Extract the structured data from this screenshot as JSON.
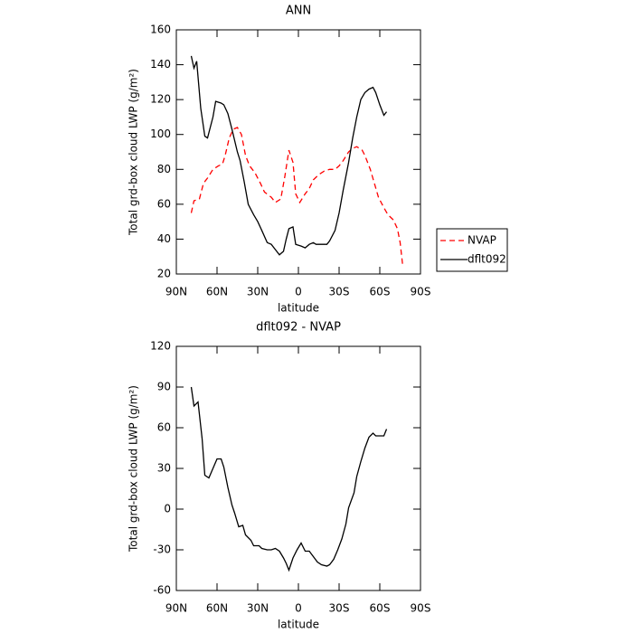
{
  "chart_data": [
    {
      "type": "line",
      "title": "ANN",
      "x_label": "latitude",
      "y_label": "Total grd-box cloud LWP (g/m²)",
      "xlim": [
        90,
        -90
      ],
      "xticks": [
        {
          "value": 90,
          "label": "90N"
        },
        {
          "value": 60,
          "label": "60N"
        },
        {
          "value": 30,
          "label": "30N"
        },
        0,
        {
          "value": -30,
          "label": "30S"
        },
        {
          "value": -60,
          "label": "60S"
        },
        {
          "value": -90,
          "label": "90S"
        }
      ],
      "ylim": [
        20,
        160
      ],
      "yticks": [
        20,
        40,
        60,
        80,
        100,
        120,
        140,
        160
      ],
      "legend": "outside-right",
      "series": [
        {
          "name": "NVAP",
          "color": "#ff0000",
          "dash": "dashed",
          "x": [
            79,
            77,
            73,
            70,
            67,
            63,
            59,
            56,
            54,
            51,
            48,
            45,
            42,
            39,
            36,
            32,
            28,
            25,
            20,
            17,
            13,
            10,
            7,
            4,
            2,
            -1,
            -5,
            -8,
            -11,
            -15,
            -19,
            -23,
            -27,
            -30,
            -33,
            -37,
            -40,
            -43,
            -47,
            -49,
            -53,
            -56,
            -59,
            -63,
            -66,
            -70,
            -73,
            -75,
            -77
          ],
          "values": [
            55,
            62,
            63,
            72,
            75,
            80,
            82,
            83,
            88,
            98,
            103,
            104,
            100,
            88,
            82,
            78,
            72,
            67,
            64,
            61,
            63,
            76,
            91,
            84,
            66,
            61,
            66,
            69,
            74,
            77,
            79,
            80,
            80,
            82,
            85,
            90,
            92,
            93,
            91,
            88,
            80,
            72,
            64,
            58,
            54,
            51,
            46,
            38,
            24
          ]
        },
        {
          "name": "dflt092",
          "color": "#000000",
          "dash": "solid",
          "x": [
            79,
            77,
            75,
            72,
            69,
            67,
            63,
            61,
            57,
            55,
            52,
            49,
            45,
            43,
            40,
            37,
            33,
            30,
            27,
            23,
            20,
            17,
            14,
            11,
            9,
            7,
            4,
            2,
            -2,
            -5,
            -8,
            -11,
            -13,
            -17,
            -21,
            -23,
            -27,
            -30,
            -33,
            -37,
            -40,
            -43,
            -46,
            -49,
            -52,
            -55,
            -57,
            -60,
            -63,
            -65
          ],
          "values": [
            145,
            138,
            142,
            115,
            99,
            98,
            110,
            119,
            118,
            117,
            112,
            103,
            90,
            85,
            73,
            60,
            54,
            50,
            45,
            38,
            37,
            34,
            31,
            33,
            40,
            46,
            47,
            37,
            36,
            35,
            37,
            38,
            37,
            37,
            37,
            39,
            45,
            55,
            68,
            84,
            98,
            110,
            120,
            124,
            126,
            127,
            124,
            117,
            111,
            113
          ]
        }
      ]
    },
    {
      "type": "line",
      "title": "dflt092 - NVAP",
      "x_label": "latitude",
      "y_label": "Total grd-box cloud LWP (g/m²)",
      "xlim": [
        90,
        -90
      ],
      "xticks": [
        {
          "value": 90,
          "label": "90N"
        },
        {
          "value": 60,
          "label": "60N"
        },
        {
          "value": 30,
          "label": "30N"
        },
        0,
        {
          "value": -30,
          "label": "30S"
        },
        {
          "value": -60,
          "label": "60S"
        },
        {
          "value": -90,
          "label": "90S"
        }
      ],
      "ylim": [
        -60,
        120
      ],
      "yticks": [
        -60,
        -30,
        0,
        30,
        60,
        90,
        120
      ],
      "series": [
        {
          "color": "#000000",
          "dash": "solid",
          "x": [
            79,
            77,
            74,
            71,
            69,
            66,
            63,
            60,
            57,
            55,
            52,
            49,
            47,
            44,
            41,
            39,
            35,
            33,
            29,
            27,
            23,
            20,
            17,
            14,
            11,
            9,
            7,
            4,
            1,
            -2,
            -5,
            -8,
            -11,
            -14,
            -17,
            -21,
            -23,
            -26,
            -29,
            -32,
            -35,
            -37,
            -41,
            -43,
            -46,
            -49,
            -52,
            -55,
            -57,
            -60,
            -63,
            -65
          ],
          "values": [
            90,
            76,
            79,
            52,
            25,
            23,
            30,
            37,
            37,
            31,
            16,
            3,
            -3,
            -13,
            -12,
            -19,
            -23,
            -27,
            -27,
            -29,
            -30,
            -30,
            -29,
            -31,
            -36,
            -40,
            -45,
            -36,
            -30,
            -25,
            -31,
            -31,
            -35,
            -39,
            -41,
            -42,
            -41,
            -37,
            -30,
            -22,
            -11,
            1,
            12,
            24,
            35,
            45,
            53,
            56,
            54,
            54,
            54,
            59
          ]
        }
      ]
    }
  ]
}
